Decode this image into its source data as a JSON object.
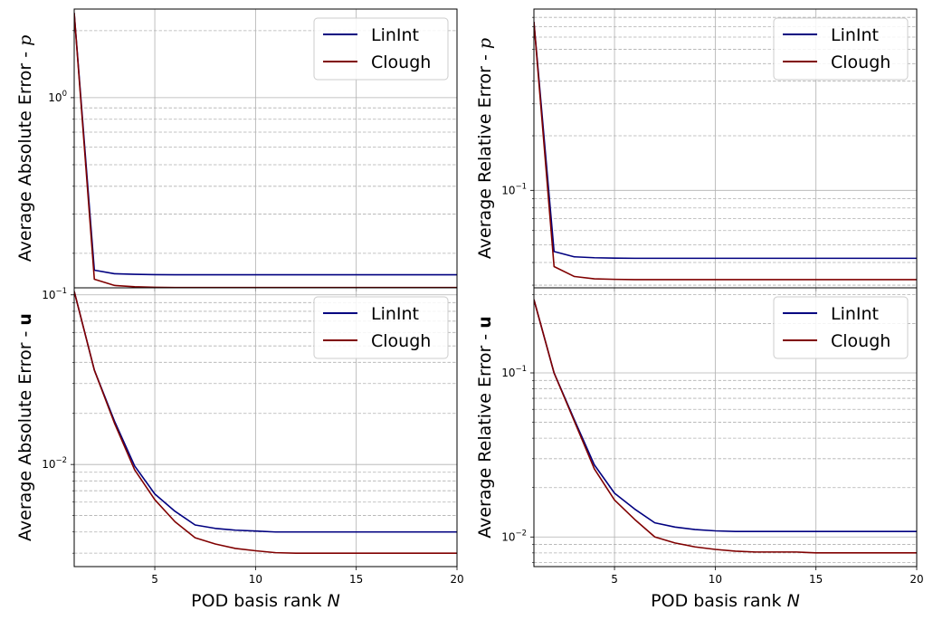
{
  "colors": {
    "linint": "#000080",
    "clough": "#800000",
    "grid": "#b0b0b0"
  },
  "chart_data": [
    {
      "type": "line",
      "panel": "top-left",
      "ylabel": "Average Absolute Error - ",
      "ylabel_symbol": "p",
      "ylabel_symbol_style": "italic",
      "xlabel": "",
      "yscale": "log",
      "xlim": [
        1,
        20
      ],
      "ylim": [
        0.14,
        2.5
      ],
      "x_ticks": [
        5,
        10,
        15,
        20
      ],
      "x_tick_labels": [
        "",
        "",
        "",
        ""
      ],
      "y_major_ticks": [
        {
          "value": 1,
          "label": "10",
          "exp": "0"
        }
      ],
      "grid": true,
      "legend": "upper right",
      "x": [
        1,
        2,
        3,
        4,
        5,
        6,
        7,
        8,
        9,
        10,
        11,
        12,
        13,
        14,
        15,
        16,
        17,
        18,
        19,
        20
      ],
      "series": [
        {
          "name": "LinInt",
          "color_key": "linint",
          "values": [
            2.4,
            0.168,
            0.162,
            0.161,
            0.1605,
            0.1603,
            0.1602,
            0.1602,
            0.1602,
            0.1602,
            0.1602,
            0.1602,
            0.1602,
            0.1602,
            0.1602,
            0.1602,
            0.1602,
            0.1602,
            0.1602,
            0.1602
          ]
        },
        {
          "name": "Clough",
          "color_key": "clough",
          "values": [
            2.4,
            0.153,
            0.1435,
            0.1415,
            0.1408,
            0.1405,
            0.1405,
            0.1405,
            0.1405,
            0.1405,
            0.1405,
            0.1405,
            0.1405,
            0.1405,
            0.1405,
            0.1405,
            0.1405,
            0.1405,
            0.1405,
            0.1405
          ]
        }
      ]
    },
    {
      "type": "line",
      "panel": "top-right",
      "ylabel": "Average Relative Error - ",
      "ylabel_symbol": "p",
      "ylabel_symbol_style": "italic",
      "xlabel": "",
      "yscale": "log",
      "xlim": [
        1,
        20
      ],
      "ylim": [
        0.029,
        1.0
      ],
      "x_ticks": [
        5,
        10,
        15,
        20
      ],
      "x_tick_labels": [
        "",
        "",
        "",
        ""
      ],
      "y_major_ticks": [
        {
          "value": 0.1,
          "label": "10",
          "exp": "−1"
        }
      ],
      "grid": true,
      "legend": "upper right",
      "x": [
        1,
        2,
        3,
        4,
        5,
        6,
        7,
        8,
        9,
        10,
        11,
        12,
        13,
        14,
        15,
        16,
        17,
        18,
        19,
        20
      ],
      "series": [
        {
          "name": "LinInt",
          "color_key": "linint",
          "values": [
            0.85,
            0.046,
            0.043,
            0.0425,
            0.0423,
            0.0422,
            0.0422,
            0.0422,
            0.0422,
            0.0422,
            0.0422,
            0.0422,
            0.0422,
            0.0422,
            0.0422,
            0.0422,
            0.0422,
            0.0422,
            0.0422,
            0.0422
          ]
        },
        {
          "name": "Clough",
          "color_key": "clough",
          "values": [
            0.85,
            0.038,
            0.0335,
            0.0325,
            0.0323,
            0.0322,
            0.0322,
            0.0322,
            0.0322,
            0.0322,
            0.0322,
            0.0322,
            0.0322,
            0.0322,
            0.0322,
            0.0322,
            0.0322,
            0.0322,
            0.0322,
            0.0322
          ]
        }
      ]
    },
    {
      "type": "line",
      "panel": "bottom-left",
      "ylabel": "Average Absolute Error - ",
      "ylabel_symbol": "u",
      "ylabel_symbol_style": "bold",
      "xlabel": "POD basis rank ",
      "xlabel_symbol": "N",
      "yscale": "log",
      "xlim": [
        1,
        20
      ],
      "ylim": [
        0.0025,
        0.11
      ],
      "x_ticks": [
        5,
        10,
        15,
        20
      ],
      "x_tick_labels": [
        "5",
        "10",
        "15",
        "20"
      ],
      "y_major_ticks": [
        {
          "value": 0.1,
          "label": "10",
          "exp": "−1"
        },
        {
          "value": 0.01,
          "label": "10",
          "exp": "−2"
        }
      ],
      "grid": true,
      "legend": "upper right",
      "x": [
        1,
        2,
        3,
        4,
        5,
        6,
        7,
        8,
        9,
        10,
        11,
        12,
        13,
        14,
        15,
        16,
        17,
        18,
        19,
        20
      ],
      "series": [
        {
          "name": "LinInt",
          "color_key": "linint",
          "values": [
            0.105,
            0.036,
            0.018,
            0.0098,
            0.0067,
            0.0053,
            0.0044,
            0.0042,
            0.0041,
            0.00405,
            0.004,
            0.004,
            0.004,
            0.004,
            0.004,
            0.004,
            0.004,
            0.004,
            0.004,
            0.004
          ]
        },
        {
          "name": "Clough",
          "color_key": "clough",
          "values": [
            0.105,
            0.036,
            0.0175,
            0.0093,
            0.0062,
            0.0046,
            0.0037,
            0.0034,
            0.0032,
            0.0031,
            0.00302,
            0.003,
            0.003,
            0.003,
            0.003,
            0.003,
            0.003,
            0.003,
            0.003,
            0.003
          ]
        }
      ]
    },
    {
      "type": "line",
      "panel": "bottom-right",
      "ylabel": "Average Relative Error - ",
      "ylabel_symbol": "u",
      "ylabel_symbol_style": "bold",
      "xlabel": "POD basis rank ",
      "xlabel_symbol": "N",
      "yscale": "log",
      "xlim": [
        1,
        20
      ],
      "ylim": [
        0.0066,
        0.33
      ],
      "x_ticks": [
        5,
        10,
        15,
        20
      ],
      "x_tick_labels": [
        "5",
        "10",
        "15",
        "20"
      ],
      "y_major_ticks": [
        {
          "value": 0.1,
          "label": "10",
          "exp": "−1"
        },
        {
          "value": 0.01,
          "label": "10",
          "exp": "−2"
        }
      ],
      "grid": true,
      "legend": "upper right",
      "x": [
        1,
        2,
        3,
        4,
        5,
        6,
        7,
        8,
        9,
        10,
        11,
        12,
        13,
        14,
        15,
        16,
        17,
        18,
        19,
        20
      ],
      "series": [
        {
          "name": "LinInt",
          "color_key": "linint",
          "values": [
            0.28,
            0.1,
            0.052,
            0.0275,
            0.0185,
            0.0148,
            0.0122,
            0.0115,
            0.0111,
            0.0109,
            0.0108,
            0.0108,
            0.0108,
            0.0108,
            0.0108,
            0.0108,
            0.0108,
            0.0108,
            0.0108,
            0.0108
          ]
        },
        {
          "name": "Clough",
          "color_key": "clough",
          "values": [
            0.28,
            0.1,
            0.051,
            0.026,
            0.0168,
            0.0128,
            0.01,
            0.0092,
            0.0087,
            0.0084,
            0.0082,
            0.0081,
            0.0081,
            0.0081,
            0.008,
            0.008,
            0.008,
            0.008,
            0.008,
            0.008
          ]
        }
      ]
    }
  ]
}
